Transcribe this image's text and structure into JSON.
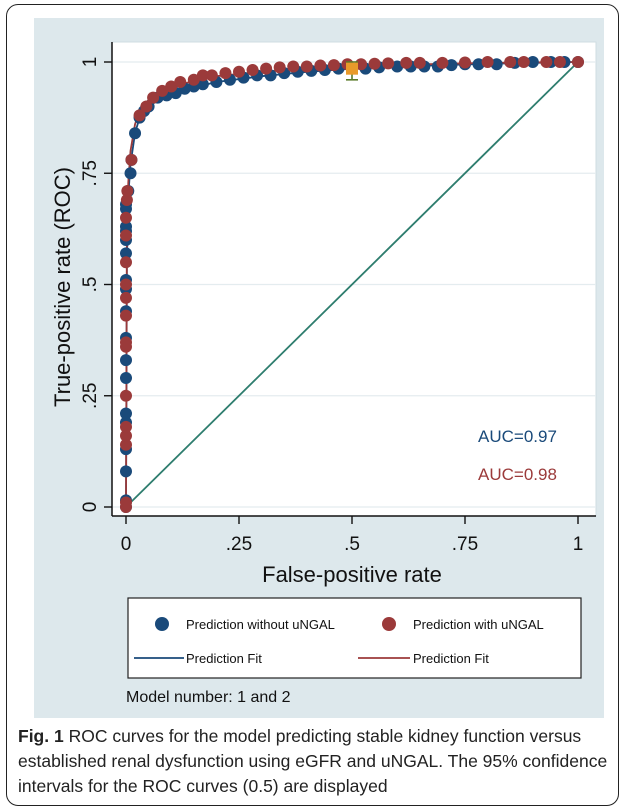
{
  "figure": {
    "caption_label": "Fig. 1",
    "caption_text": "ROC curves for the model predicting stable kidney function versus established renal dysfunction using eGFR and uNGAL. The 95% confidence intervals for the ROC curves (0.5) are displayed"
  },
  "chart_data": {
    "type": "scatter",
    "title": "",
    "xlabel": "False-positive rate",
    "ylabel": "True-positive rate (ROC)",
    "xlim": [
      0,
      1
    ],
    "ylim": [
      0,
      1
    ],
    "xticks": [
      0,
      0.25,
      0.5,
      0.75,
      1
    ],
    "xtick_labels": [
      "0",
      ".25",
      ".5",
      ".75",
      "1"
    ],
    "yticks": [
      0,
      0.25,
      0.5,
      0.75,
      1
    ],
    "ytick_labels": [
      "0",
      ".25",
      ".5",
      ".75",
      "1"
    ],
    "grid": true,
    "legend_position": "bottom",
    "note": "Model number: 1 and 2",
    "reference_line": {
      "x": [
        0,
        1
      ],
      "y": [
        0,
        1
      ],
      "color": "#2e7d6e"
    },
    "series": [
      {
        "name": "Prediction without uNGAL",
        "fit_name": "Prediction Fit",
        "color": "#1a4a7a",
        "auc_label": "AUC=0.97",
        "points": [
          [
            0,
            0
          ],
          [
            0,
            0.015
          ],
          [
            0,
            0.08
          ],
          [
            0,
            0.13
          ],
          [
            0,
            0.19
          ],
          [
            0,
            0.21
          ],
          [
            0,
            0.29
          ],
          [
            0,
            0.33
          ],
          [
            0,
            0.38
          ],
          [
            0,
            0.44
          ],
          [
            0,
            0.49
          ],
          [
            0,
            0.51
          ],
          [
            0,
            0.57
          ],
          [
            0,
            0.6
          ],
          [
            0,
            0.62
          ],
          [
            0,
            0.63
          ],
          [
            0,
            0.67
          ],
          [
            0,
            0.68
          ],
          [
            0.005,
            0.71
          ],
          [
            0.01,
            0.75
          ],
          [
            0.012,
            0.78
          ],
          [
            0.02,
            0.84
          ],
          [
            0.03,
            0.875
          ],
          [
            0.04,
            0.89
          ],
          [
            0.05,
            0.9
          ],
          [
            0.07,
            0.92
          ],
          [
            0.09,
            0.925
          ],
          [
            0.11,
            0.93
          ],
          [
            0.13,
            0.94
          ],
          [
            0.15,
            0.945
          ],
          [
            0.17,
            0.95
          ],
          [
            0.2,
            0.955
          ],
          [
            0.23,
            0.96
          ],
          [
            0.26,
            0.965
          ],
          [
            0.29,
            0.97
          ],
          [
            0.32,
            0.97
          ],
          [
            0.35,
            0.975
          ],
          [
            0.38,
            0.978
          ],
          [
            0.41,
            0.98
          ],
          [
            0.44,
            0.982
          ],
          [
            0.47,
            0.985
          ],
          [
            0.5,
            0.985
          ],
          [
            0.53,
            0.985
          ],
          [
            0.56,
            0.988
          ],
          [
            0.6,
            0.99
          ],
          [
            0.63,
            0.99
          ],
          [
            0.66,
            0.99
          ],
          [
            0.69,
            0.99
          ],
          [
            0.72,
            0.993
          ],
          [
            0.75,
            0.995
          ],
          [
            0.78,
            0.995
          ],
          [
            0.82,
            0.995
          ],
          [
            0.86,
            0.998
          ],
          [
            0.9,
            1
          ],
          [
            0.94,
            1
          ],
          [
            0.97,
            1
          ],
          [
            1,
            1
          ]
        ],
        "fit": [
          [
            0,
            0
          ],
          [
            0.002,
            0.55
          ],
          [
            0.005,
            0.7
          ],
          [
            0.01,
            0.77
          ],
          [
            0.02,
            0.84
          ],
          [
            0.03,
            0.875
          ],
          [
            0.05,
            0.9
          ],
          [
            0.08,
            0.92
          ],
          [
            0.12,
            0.935
          ],
          [
            0.2,
            0.955
          ],
          [
            0.3,
            0.968
          ],
          [
            0.4,
            0.978
          ],
          [
            0.5,
            0.985
          ],
          [
            0.6,
            0.989
          ],
          [
            0.7,
            0.993
          ],
          [
            0.8,
            0.996
          ],
          [
            0.9,
            0.998
          ],
          [
            1,
            1
          ]
        ]
      },
      {
        "name": "Prediction with uNGAL",
        "fit_name": "Prediction Fit",
        "color": "#9b3a3a",
        "auc_label": "AUC=0.98",
        "points": [
          [
            0,
            0
          ],
          [
            0,
            0.01
          ],
          [
            0,
            0.14
          ],
          [
            0,
            0.16
          ],
          [
            0,
            0.18
          ],
          [
            0,
            0.25
          ],
          [
            0,
            0.36
          ],
          [
            0,
            0.37
          ],
          [
            0,
            0.43
          ],
          [
            0,
            0.47
          ],
          [
            0,
            0.5
          ],
          [
            0,
            0.55
          ],
          [
            0,
            0.61
          ],
          [
            0,
            0.65
          ],
          [
            0.002,
            0.69
          ],
          [
            0.003,
            0.71
          ],
          [
            0.012,
            0.78
          ],
          [
            0.03,
            0.88
          ],
          [
            0.045,
            0.9
          ],
          [
            0.06,
            0.92
          ],
          [
            0.08,
            0.935
          ],
          [
            0.1,
            0.945
          ],
          [
            0.12,
            0.955
          ],
          [
            0.15,
            0.96
          ],
          [
            0.17,
            0.97
          ],
          [
            0.19,
            0.97
          ],
          [
            0.22,
            0.975
          ],
          [
            0.25,
            0.978
          ],
          [
            0.28,
            0.982
          ],
          [
            0.31,
            0.985
          ],
          [
            0.34,
            0.988
          ],
          [
            0.37,
            0.99
          ],
          [
            0.4,
            0.99
          ],
          [
            0.43,
            0.992
          ],
          [
            0.46,
            0.993
          ],
          [
            0.49,
            0.995
          ],
          [
            0.52,
            0.995
          ],
          [
            0.55,
            0.996
          ],
          [
            0.58,
            0.997
          ],
          [
            0.62,
            0.998
          ],
          [
            0.65,
            0.998
          ],
          [
            0.7,
            0.998
          ],
          [
            0.75,
            0.999
          ],
          [
            0.8,
            1
          ],
          [
            0.85,
            1
          ],
          [
            0.88,
            1
          ],
          [
            0.93,
            1
          ],
          [
            0.96,
            1
          ],
          [
            1,
            1
          ]
        ],
        "fit": [
          [
            0,
            0
          ],
          [
            0.002,
            0.62
          ],
          [
            0.005,
            0.73
          ],
          [
            0.01,
            0.8
          ],
          [
            0.02,
            0.86
          ],
          [
            0.03,
            0.89
          ],
          [
            0.05,
            0.915
          ],
          [
            0.08,
            0.935
          ],
          [
            0.12,
            0.95
          ],
          [
            0.2,
            0.968
          ],
          [
            0.3,
            0.978
          ],
          [
            0.4,
            0.986
          ],
          [
            0.5,
            0.99
          ],
          [
            0.6,
            0.993
          ],
          [
            0.7,
            0.996
          ],
          [
            0.8,
            0.998
          ],
          [
            0.9,
            0.999
          ],
          [
            1,
            1
          ]
        ]
      }
    ],
    "confidence_interval": {
      "x": 0.5,
      "y": 0.985,
      "low": 0.96,
      "high": 1.0,
      "color": "#5a7a2a",
      "marker_color": "#e89a2a"
    }
  }
}
